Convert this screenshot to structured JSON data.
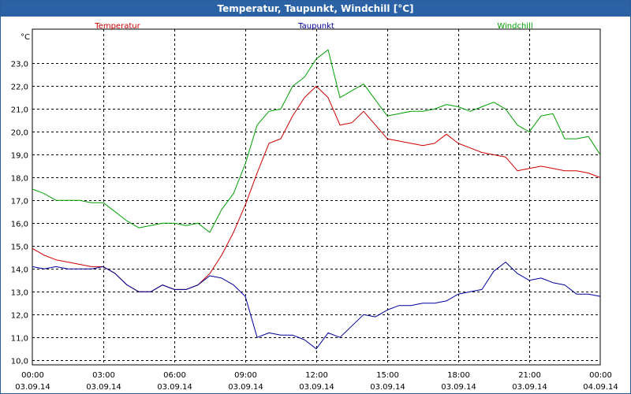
{
  "window": {
    "title": "Temperatur, Taupunkt, Windchill [°C]"
  },
  "chart_data": {
    "type": "line",
    "title": "Temperatur, Taupunkt, Windchill [°C]",
    "ylabel": "°C",
    "xlabel": "",
    "ylim": [
      9.8,
      24.5
    ],
    "xlim": [
      0,
      24
    ],
    "grid": true,
    "legend": "top",
    "yticks": [
      10,
      11,
      12,
      13,
      14,
      15,
      16,
      17,
      18,
      19,
      20,
      21,
      22,
      23
    ],
    "ytick_labels": [
      "10,0",
      "11,0",
      "12,0",
      "13,0",
      "14,0",
      "15,0",
      "16,0",
      "17,0",
      "18,0",
      "19,0",
      "20,0",
      "21,0",
      "22,0",
      "23,0"
    ],
    "xticks": [
      {
        "time": "00:00",
        "date": "03.09.14"
      },
      {
        "time": "03:00",
        "date": "03.09.14"
      },
      {
        "time": "06:00",
        "date": "03.09.14"
      },
      {
        "time": "09:00",
        "date": "03.09.14"
      },
      {
        "time": "12:00",
        "date": "03.09.14"
      },
      {
        "time": "15:00",
        "date": "03.09.14"
      },
      {
        "time": "18:00",
        "date": "03.09.14"
      },
      {
        "time": "21:00",
        "date": "03.09.14"
      },
      {
        "time": "00:00",
        "date": "04.09.14"
      }
    ],
    "series": [
      {
        "name": "Temperatur",
        "color": "#cc0000",
        "x": [
          0,
          0.5,
          1,
          1.5,
          2,
          2.5,
          3,
          3.5,
          4,
          4.5,
          5,
          5.5,
          6,
          6.5,
          7,
          7.5,
          8,
          8.5,
          9,
          9.5,
          10,
          10.5,
          11,
          11.5,
          12,
          12.5,
          13,
          13.5,
          14,
          14.5,
          15,
          15.5,
          16,
          16.5,
          17,
          17.5,
          18,
          18.5,
          19,
          19.5,
          20,
          20.5,
          21,
          21.5,
          22,
          22.5,
          23,
          23.5,
          24
        ],
        "values": [
          14.9,
          14.6,
          14.4,
          14.3,
          14.2,
          14.1,
          14.1,
          13.8,
          13.3,
          13.0,
          13.0,
          13.3,
          13.1,
          13.1,
          13.3,
          13.8,
          14.6,
          15.6,
          16.8,
          18.2,
          19.5,
          19.7,
          20.7,
          21.5,
          22.0,
          21.5,
          20.3,
          20.4,
          20.9,
          20.3,
          19.7,
          19.6,
          19.5,
          19.4,
          19.5,
          19.9,
          19.5,
          19.3,
          19.1,
          19.0,
          18.9,
          18.3,
          18.4,
          18.5,
          18.4,
          18.3,
          18.3,
          18.2,
          18.0
        ]
      },
      {
        "name": "Taupunkt",
        "color": "#00009c",
        "x": [
          0,
          0.5,
          1,
          1.5,
          2,
          2.5,
          3,
          3.5,
          4,
          4.5,
          5,
          5.5,
          6,
          6.5,
          7,
          7.5,
          8,
          8.5,
          9,
          9.5,
          10,
          10.5,
          11,
          11.5,
          12,
          12.5,
          13,
          13.5,
          14,
          14.5,
          15,
          15.5,
          16,
          16.5,
          17,
          17.5,
          18,
          18.5,
          19,
          19.5,
          20,
          20.5,
          21,
          21.5,
          22,
          22.5,
          23,
          23.5,
          24
        ],
        "values": [
          14.1,
          14.0,
          14.1,
          14.0,
          14.0,
          14.0,
          14.1,
          13.8,
          13.3,
          13.0,
          13.0,
          13.3,
          13.1,
          13.1,
          13.3,
          13.7,
          13.6,
          13.3,
          12.8,
          11.0,
          11.2,
          11.1,
          11.1,
          10.9,
          10.5,
          11.2,
          11.0,
          11.5,
          12.0,
          11.9,
          12.2,
          12.4,
          12.4,
          12.5,
          12.5,
          12.6,
          12.9,
          13.0,
          13.1,
          13.9,
          14.3,
          13.8,
          13.5,
          13.6,
          13.4,
          13.3,
          12.9,
          12.9,
          12.8
        ]
      },
      {
        "name": "Windchill",
        "color": "#00a000",
        "x": [
          0,
          0.5,
          1,
          1.5,
          2,
          2.5,
          3,
          3.5,
          4,
          4.5,
          5,
          5.5,
          6,
          6.5,
          7,
          7.5,
          8,
          8.5,
          9,
          9.5,
          10,
          10.5,
          11,
          11.5,
          12,
          12.5,
          13,
          13.5,
          14,
          14.5,
          15,
          15.5,
          16,
          16.5,
          17,
          17.5,
          18,
          18.5,
          19,
          19.5,
          20,
          20.5,
          21,
          21.5,
          22,
          22.5,
          23,
          23.5,
          24
        ],
        "values": [
          17.5,
          17.3,
          17.0,
          17.0,
          17.0,
          16.9,
          16.9,
          16.5,
          16.1,
          15.8,
          15.9,
          16.0,
          16.0,
          15.9,
          16.0,
          15.6,
          16.6,
          17.3,
          18.6,
          20.3,
          20.9,
          21.0,
          22.0,
          22.4,
          23.2,
          23.6,
          21.5,
          21.8,
          22.1,
          21.4,
          20.7,
          20.8,
          20.9,
          20.9,
          21.0,
          21.2,
          21.1,
          20.9,
          21.1,
          21.3,
          21.0,
          20.3,
          20.0,
          20.7,
          20.8,
          19.7,
          19.7,
          19.8,
          19.0
        ]
      }
    ]
  }
}
